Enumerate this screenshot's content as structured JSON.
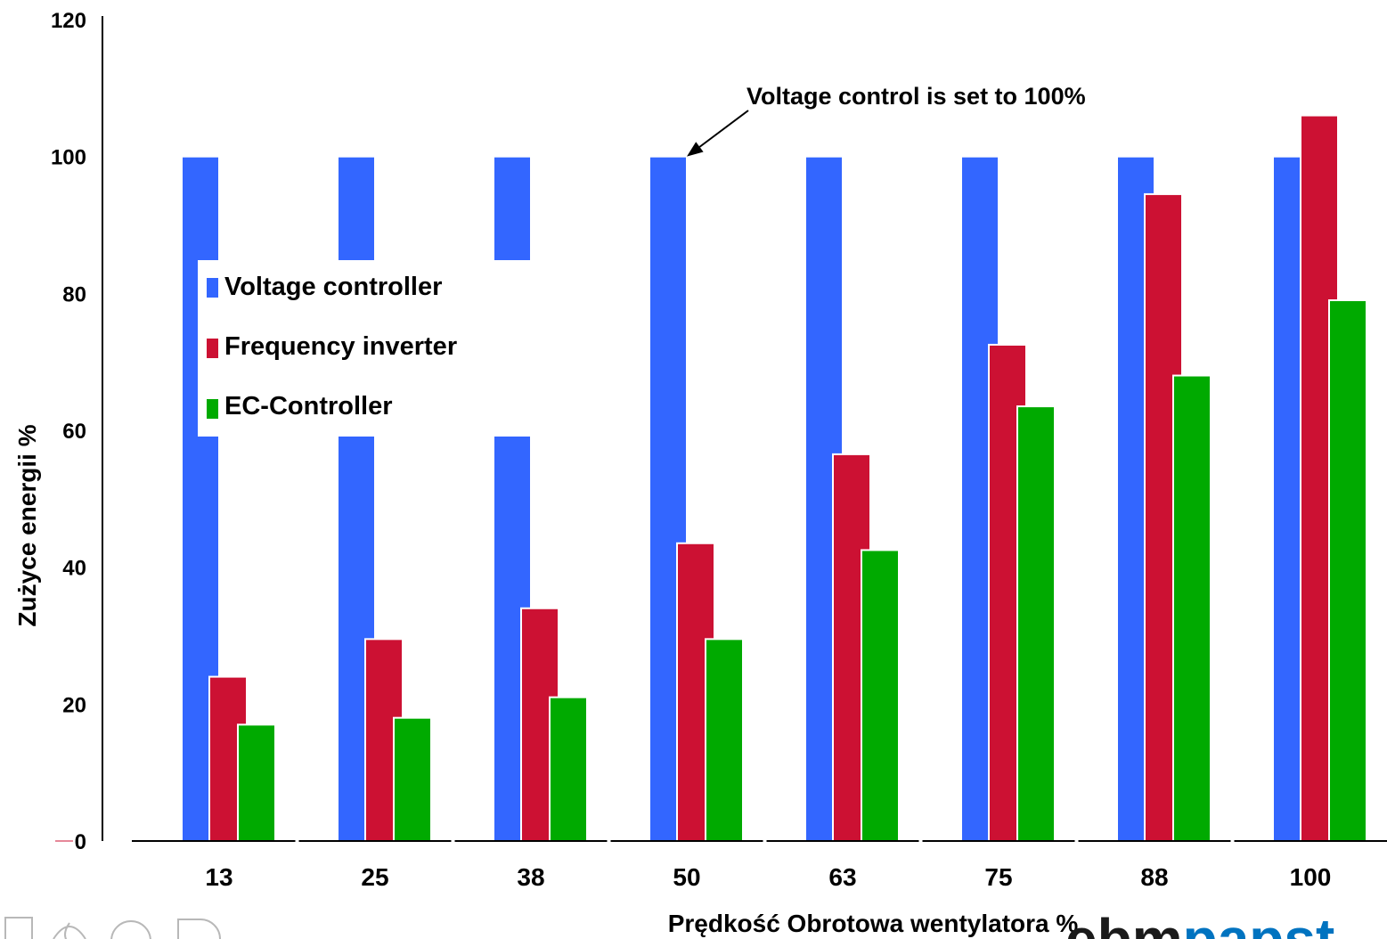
{
  "chart_data": {
    "type": "bar",
    "title": "",
    "xlabel": "Prędkość Obrotowa wentylatora %",
    "ylabel": "Zużyce energii  %",
    "ylim": [
      0,
      120
    ],
    "yticks": [
      0,
      20,
      40,
      60,
      80,
      100,
      120
    ],
    "categories": [
      "13",
      "25",
      "38",
      "50",
      "63",
      "75",
      "88",
      "100"
    ],
    "series": [
      {
        "name": "Voltage controller",
        "color": "#3366ff",
        "values": [
          100,
          100,
          100,
          100,
          100,
          100,
          100,
          100
        ]
      },
      {
        "name": "Frequency inverter",
        "color": "#cc1133",
        "values": [
          24,
          29.5,
          34,
          43.5,
          56.5,
          72.5,
          94.5,
          106
        ]
      },
      {
        "name": "EC-Controller",
        "color": "#00aa00",
        "values": [
          17,
          18,
          21,
          29.5,
          42.5,
          63.5,
          68,
          79
        ]
      }
    ],
    "legend": {
      "placement": "inside-top-left"
    },
    "annotation": {
      "text": "Voltage control is set to 100%",
      "target_category": "50",
      "target_value": 100
    },
    "grid": false
  },
  "logo": {
    "text_dark": "ebm",
    "text_blue": "papst",
    "color_dark": "#1a1a1a",
    "color_blue": "#0073c0"
  }
}
